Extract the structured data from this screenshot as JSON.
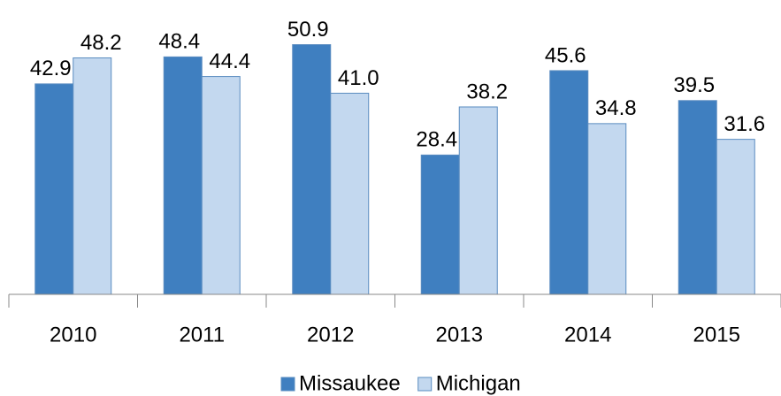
{
  "chart_data": {
    "type": "bar",
    "categories": [
      "2010",
      "2011",
      "2012",
      "2013",
      "2014",
      "2015"
    ],
    "series": [
      {
        "name": "Missaukee",
        "color": "#3f7fc0",
        "values": [
          42.9,
          48.4,
          50.9,
          28.4,
          45.6,
          39.5
        ],
        "value_labels": [
          "42.9",
          "48.4",
          "50.9",
          "28.4",
          "45.6",
          "39.5"
        ]
      },
      {
        "name": "Michigan",
        "color": "#c3d8ef",
        "values": [
          48.2,
          44.4,
          41.0,
          38.2,
          34.8,
          31.6
        ],
        "value_labels": [
          "48.2",
          "44.4",
          "41.0",
          "38.2",
          "34.8",
          "31.6"
        ]
      }
    ],
    "ylim": [
      0,
      60
    ],
    "legend": "bottom"
  }
}
